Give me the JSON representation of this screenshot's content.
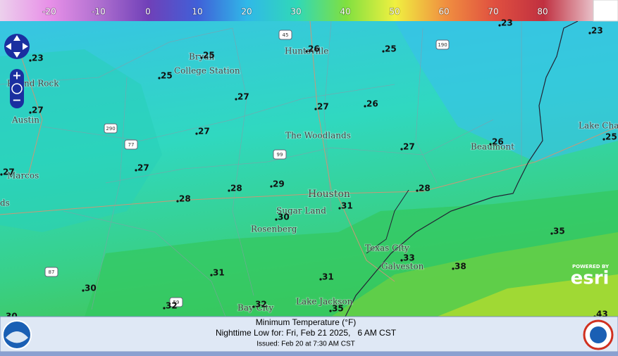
{
  "legend": {
    "labels": [
      -20,
      -10,
      0,
      10,
      20,
      30,
      40,
      50,
      60,
      70,
      80
    ]
  },
  "map": {
    "cities": [
      "Bryan",
      "College Station",
      "Round Rock",
      "Austin",
      "Marcos",
      "ds",
      "Huntsville",
      "The Woodlands",
      "Beaumont",
      "Lake Cha",
      "Houston",
      "Sugar Land",
      "Rosenberg",
      "Texas City",
      "Galveston",
      "Lake Jackson",
      "Bay City"
    ],
    "temperatures": [
      23,
      25,
      25,
      26,
      25,
      23,
      23,
      27,
      27,
      27,
      26,
      27,
      27,
      27,
      27,
      26,
      25,
      28,
      29,
      28,
      28,
      31,
      30,
      35,
      33,
      38,
      31,
      31,
      30,
      32,
      32,
      35,
      43,
      30
    ],
    "highways": [
      "45",
      "190",
      "290",
      "77",
      "99",
      "87",
      "59"
    ],
    "attribution": {
      "powered_by": "POWERED BY",
      "brand": "esri"
    }
  },
  "footer": {
    "title": "Minimum Temperature (°F)",
    "subtitle": "Nighttime Low for: Fri, Feb 21 2025,   6 AM CST",
    "issued": "Issued: Feb 20 at 7:30 AM CST"
  }
}
